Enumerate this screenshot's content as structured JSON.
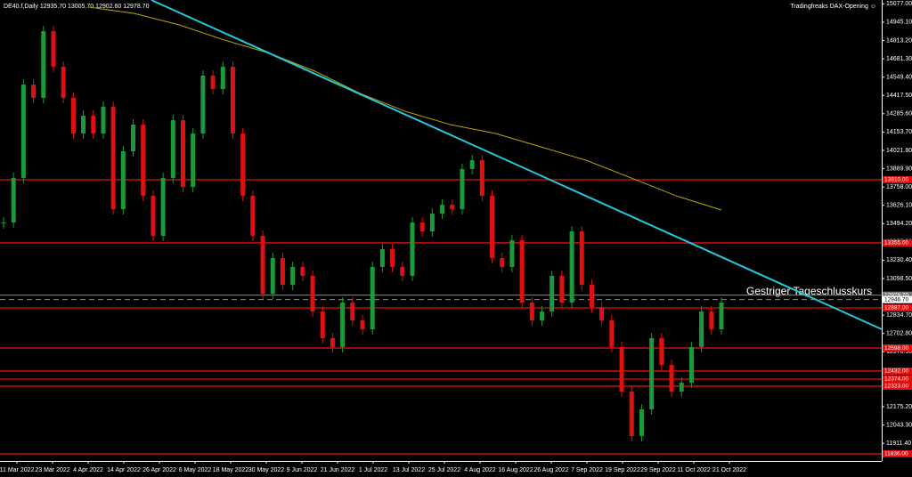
{
  "chart_data": {
    "type": "candlestick",
    "title": "DE40.f,Daily  12935.70 13005.70 12902.60 12978.70",
    "subtitle": "Tradingfreaks DAX-Opening ☺",
    "annotation": "Gestriger Tageschlusskurs",
    "x_labels": [
      "11 Mar 2022",
      "23 Mar 2022",
      "4 Apr 2022",
      "14 Apr 2022",
      "26 Apr 2022",
      "6 May 2022",
      "18 May 2022",
      "30 May 2022",
      "9 Jun 2022",
      "21 Jun 2022",
      "1 Jul 2022",
      "13 Jul 2022",
      "25 Jul 2022",
      "4 Aug 2022",
      "16 Aug 2022",
      "26 Aug 2022",
      "7 Sep 2022",
      "19 Sep 2022",
      "29 Sep 2022",
      "11 Oct 2022",
      "21 Oct 2022"
    ],
    "closes": [
      13502,
      13823,
      14496,
      14400,
      14880,
      14624,
      14400,
      14143,
      14271,
      14143,
      14336,
      13598,
      14015,
      14207,
      13694,
      13406,
      13823,
      14239,
      13758,
      14143,
      14560,
      14464,
      14624,
      14143,
      13694,
      13406,
      12989,
      13246,
      13053,
      13182,
      13118,
      12861,
      12669,
      12605,
      12925,
      12797,
      12733,
      13182,
      13310,
      13182,
      13118,
      13502,
      13438,
      13566,
      13630,
      13598,
      13887,
      13951,
      13694,
      13246,
      13182,
      13374,
      12925,
      12797,
      12861,
      13118,
      12925,
      13438,
      13053,
      12893,
      12797,
      12605,
      12284,
      11964,
      12156,
      12669,
      12476,
      12284,
      12348,
      12605,
      12861,
      12733,
      12925
    ],
    "up_color": "#1a9a3a",
    "down_color": "#e01010",
    "ma_values": [
      15053,
      15008,
      14925,
      14816,
      14720,
      14592,
      14432,
      14303,
      14207,
      14143,
      14047,
      13951,
      13823,
      13694,
      13592
    ],
    "ma_color": "#b8a800",
    "trendline": [
      15104,
      12733
    ],
    "trend_color": "#22c8dc",
    "levels": [
      {
        "value": 13810,
        "label": "13810.00"
      },
      {
        "value": 13355,
        "label": "13355.00"
      },
      {
        "value": 12887,
        "label": "12887.00"
      },
      {
        "value": 12598,
        "label": "12598.00"
      },
      {
        "value": 12432,
        "label": "12432.00"
      },
      {
        "value": 12374,
        "label": "12374.00"
      },
      {
        "value": 12323,
        "label": "12323.00"
      },
      {
        "value": 11836,
        "label": "11836.00"
      }
    ],
    "level_color": "#e01010",
    "price_lines": [
      {
        "value": 12978.7,
        "label": "12978.70"
      },
      {
        "value": 12946.7,
        "label": "12946.70"
      }
    ],
    "ylim": [
      11784.3,
      15104.7
    ],
    "yticks": [
      {
        "value": 15077,
        "label": "15077.00"
      },
      {
        "value": 14945.1,
        "label": "14945.10"
      },
      {
        "value": 14813.2,
        "label": "14813.20"
      },
      {
        "value": 14681.3,
        "label": "14681.30"
      },
      {
        "value": 14549.4,
        "label": "14549.40"
      },
      {
        "value": 14417.5,
        "label": "14417.50"
      },
      {
        "value": 14285.6,
        "label": "14285.60"
      },
      {
        "value": 14153.7,
        "label": "14153.70"
      },
      {
        "value": 14021.8,
        "label": "14021.80"
      },
      {
        "value": 13889.9,
        "label": "13889.90"
      },
      {
        "value": 13758,
        "label": "13758.00"
      },
      {
        "value": 13626.1,
        "label": "13626.10"
      },
      {
        "value": 13494.2,
        "label": "13494.20"
      },
      {
        "value": 13362.3,
        "label": "13362.30"
      },
      {
        "value": 13230.4,
        "label": "13230.40"
      },
      {
        "value": 13098.5,
        "label": "13098.50"
      },
      {
        "value": 12834.7,
        "label": "12834.70"
      },
      {
        "value": 12702.8,
        "label": "12702.80"
      },
      {
        "value": 12570.9,
        "label": "12570.90"
      },
      {
        "value": 12175.2,
        "label": "12175.20"
      },
      {
        "value": 12043.3,
        "label": "12043.30"
      },
      {
        "value": 11911.4,
        "label": "11911.40"
      }
    ]
  }
}
